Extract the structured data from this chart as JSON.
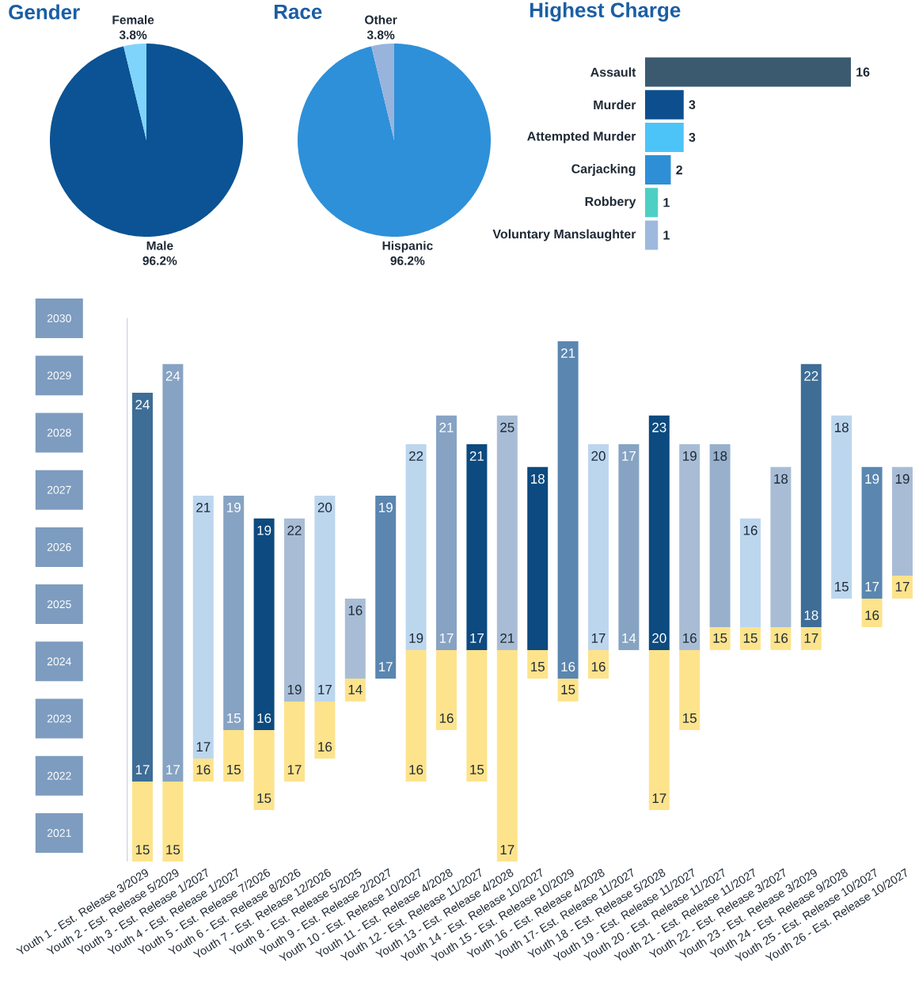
{
  "chart_data": [
    {
      "type": "pie",
      "title": "Gender",
      "categories": [
        "Male",
        "Female"
      ],
      "values": [
        96.2,
        3.8
      ],
      "colors": [
        "#0b5394",
        "#7fd4fb"
      ],
      "value_labels": [
        "96.2%",
        "3.8%"
      ]
    },
    {
      "type": "pie",
      "title": "Race",
      "categories": [
        "Hispanic",
        "Other"
      ],
      "values": [
        96.2,
        3.8
      ],
      "colors": [
        "#2e90d8",
        "#98b4dd"
      ],
      "value_labels": [
        "96.2%",
        "3.8%"
      ]
    },
    {
      "type": "bar",
      "orientation": "horizontal",
      "title": "Highest Charge",
      "categories": [
        "Assault",
        "Murder",
        "Attempted Murder",
        "Carjacking",
        "Robbery",
        "Voluntary Manslaughter"
      ],
      "values": [
        16,
        3,
        3,
        2,
        1,
        1
      ],
      "colors": [
        "#3b5a70",
        "#0d4f8e",
        "#4dc4f8",
        "#2f8fd6",
        "#4dcfc4",
        "#9fb9de"
      ],
      "data_labels": true
    },
    {
      "type": "bar",
      "categories": [
        "Youth 1 - Est. Release 3/2029",
        "Youth 2 - Est. Release 5/2029",
        "Youth 3 - Est. Release 1/2027",
        "Youth 4 - Est. Release 1/2027",
        "Youth 5 - Est. Release 7/2026",
        "Youth 6 - Est. Release 8/2026",
        "Youth 7 - Est. Release 12/2026",
        "Youth 8 - Est. Release 5/2025",
        "Youth 9 - Est. Release 2/2027",
        "Youth 10 - Est. Release 10/2027",
        "Youth 11 - Est. Release 4/2028",
        "Youth 12 - Est. Release 11/2027",
        "Youth 13 - Est. Release 4/2028",
        "Youth 14 - Est. Release 10/2027",
        "Youth 15 - Est. Release 10/2029",
        "Youth 16 - Est. Release 4/2028",
        "Youth 17- Est. Release 11/2027",
        "Youth 18 - Est. Release 5/2028",
        "Youth 19 - Est. Release 11/2027",
        "Youth 20 - Est. Release 11/2027",
        "Youth 21 - Est. Release 11/2027",
        "Youth 22 - Est. Release 3/2027",
        "Youth 23 - Est. Release 3/2029",
        "Youth 24 - Est. Release 9/2028",
        "Youth 25 - Est. Release 10/2027",
        "Youth 26 - Est. Release 10/2027"
      ],
      "base": [
        2021.9,
        2021.9,
        2022.3,
        2022.8,
        2022.8,
        2023.3,
        2023.3,
        2023.7,
        2023.7,
        2024.2,
        2024.2,
        2024.2,
        2024.2,
        2024.2,
        2023.7,
        2024.2,
        2024.2,
        2024.2,
        2024.2,
        2024.6,
        2024.6,
        2024.6,
        2024.6,
        2025.1,
        2025.1,
        2025.5
      ],
      "values": [
        6.8,
        7.3,
        4.6,
        4.1,
        3.7,
        3.2,
        3.6,
        1.4,
        3.2,
        3.6,
        4.1,
        3.6,
        4.1,
        3.2,
        5.9,
        3.6,
        3.6,
        4.1,
        3.6,
        3.2,
        1.9,
        2.8,
        4.6,
        3.2,
        2.3,
        1.9
      ],
      "colors": [
        "#3e6d96",
        "#87a3c3",
        "#bcd6ee",
        "#87a3c3",
        "#0c4a7f",
        "#a8bdd5",
        "#bcd6ee",
        "#a8bdd5",
        "#5a86b0",
        "#bcd6ee",
        "#87a3c3",
        "#0c4a7f",
        "#a8bdd5",
        "#0c4a7f",
        "#5a86b0",
        "#bcd6ee",
        "#87a3c3",
        "#0c4a7f",
        "#a8bdd5",
        "#98b0cc",
        "#bcd6ee",
        "#a8bdd5",
        "#3e6d96",
        "#bcd6ee",
        "#5a86b0",
        "#a8bdd5"
      ],
      "ylim": [
        2020.5,
        2030
      ],
      "yticks": [
        2021,
        2022,
        2023,
        2024,
        2025,
        2026,
        2027,
        2028,
        2029,
        2030
      ],
      "annotations": [
        {
          "text": "17",
          "x": "Youth 1 - Est. Release 3/2029",
          "y": 2021.9
        },
        {
          "text": "24",
          "x": "Youth 1 - Est. Release 3/2029",
          "y": 2028.7
        },
        {
          "text": "17",
          "x": "Youth 2 - Est. Release 5/2029",
          "y": 2021.9
        },
        {
          "text": "24",
          "x": "Youth 2 - Est. Release 5/2029",
          "y": 2029.2
        },
        {
          "text": "17",
          "x": "Youth 3 - Est. Release 1/2027",
          "y": 2022.3
        },
        {
          "text": "21",
          "x": "Youth 3 - Est. Release 1/2027",
          "y": 2026.9
        },
        {
          "text": "15",
          "x": "Youth 4 - Est. Release 1/2027",
          "y": 2022.8
        },
        {
          "text": "19",
          "x": "Youth 4 - Est. Release 1/2027",
          "y": 2026.9
        },
        {
          "text": "16",
          "x": "Youth 5 - Est. Release 7/2026",
          "y": 2022.8
        },
        {
          "text": "19",
          "x": "Youth 5 - Est. Release 7/2026",
          "y": 2026.5
        },
        {
          "text": "19",
          "x": "Youth 6 - Est. Release 8/2026",
          "y": 2023.3
        },
        {
          "text": "22",
          "x": "Youth 6 - Est. Release 8/2026",
          "y": 2026.5
        },
        {
          "text": "17",
          "x": "Youth 7 - Est. Release 12/2026",
          "y": 2023.3
        },
        {
          "text": "20",
          "x": "Youth 7 - Est. Release 12/2026",
          "y": 2026.9
        },
        {
          "text": "16",
          "x": "Youth 8 - Est. Release 5/2025",
          "y": 2025.1
        },
        {
          "text": "17",
          "x": "Youth 9 - Est. Release 2/2027",
          "y": 2023.7
        },
        {
          "text": "19",
          "x": "Youth 9 - Est. Release 2/2027",
          "y": 2026.9
        },
        {
          "text": "19",
          "x": "Youth 10 - Est. Release 10/2027",
          "y": 2024.2
        },
        {
          "text": "22",
          "x": "Youth 10 - Est. Release 10/2027",
          "y": 2027.8
        },
        {
          "text": "17",
          "x": "Youth 11 - Est. Release 4/2028",
          "y": 2024.2
        },
        {
          "text": "21",
          "x": "Youth 11 - Est. Release 4/2028",
          "y": 2028.3
        },
        {
          "text": "17",
          "x": "Youth 12 - Est. Release 11/2027",
          "y": 2024.2
        },
        {
          "text": "21",
          "x": "Youth 12 - Est. Release 11/2027",
          "y": 2027.8
        },
        {
          "text": "21",
          "x": "Youth 13 - Est. Release 4/2028",
          "y": 2024.2
        },
        {
          "text": "25",
          "x": "Youth 13 - Est. Release 4/2028",
          "y": 2028.3
        },
        {
          "text": "18",
          "x": "Youth 14 - Est. Release 10/2027",
          "y": 2027.4
        },
        {
          "text": "16",
          "x": "Youth 15 - Est. Release 10/2029",
          "y": 2023.7
        },
        {
          "text": "21",
          "x": "Youth 15 - Est. Release 10/2029",
          "y": 2029.6
        },
        {
          "text": "17",
          "x": "Youth 16 - Est. Release 4/2028",
          "y": 2024.2
        },
        {
          "text": "20",
          "x": "Youth 16 - Est. Release 4/2028",
          "y": 2027.8
        },
        {
          "text": "14",
          "x": "Youth 17- Est. Release 11/2027",
          "y": 2024.2
        },
        {
          "text": "17",
          "x": "Youth 17- Est. Release 11/2027",
          "y": 2027.8
        },
        {
          "text": "20",
          "x": "Youth 18 - Est. Release 5/2028",
          "y": 2024.2
        },
        {
          "text": "23",
          "x": "Youth 18 - Est. Release 5/2028",
          "y": 2028.3
        },
        {
          "text": "16",
          "x": "Youth 19 - Est. Release 11/2027",
          "y": 2024.2
        },
        {
          "text": "19",
          "x": "Youth 19 - Est. Release 11/2027",
          "y": 2027.8
        },
        {
          "text": "18",
          "x": "Youth 20 - Est. Release 11/2027",
          "y": 2027.8
        },
        {
          "text": "16",
          "x": "Youth 21 - Est. Release 11/2027",
          "y": 2026.5
        },
        {
          "text": "18",
          "x": "Youth 22 - Est. Release 3/2027",
          "y": 2027.4
        },
        {
          "text": "18",
          "x": "Youth 23 - Est. Release 3/2029",
          "y": 2024.6
        },
        {
          "text": "22",
          "x": "Youth 23 - Est. Release 3/2029",
          "y": 2029.2
        },
        {
          "text": "15",
          "x": "Youth 24 - Est. Release 9/2028",
          "y": 2025.1
        },
        {
          "text": "18",
          "x": "Youth 24 - Est. Release 9/2028",
          "y": 2028.3
        },
        {
          "text": "17",
          "x": "Youth 25 - Est. Release 10/2027",
          "y": 2025.1
        },
        {
          "text": "19",
          "x": "Youth 25 - Est. Release 10/2027",
          "y": 2027.4
        },
        {
          "text": "19",
          "x": "Youth 26 - Est. Release 10/2027",
          "y": 2027.4
        }
      ]
    },
    {
      "type": "bar",
      "tick_labels": false,
      "categories": [
        "Youth 1 - Est. Release 3/2029",
        "Youth 2 - Est. Release 5/2029",
        "Youth 3 - Est. Release 1/2027",
        "Youth 4 - Est. Release 1/2027",
        "Youth 5 - Est. Release 7/2026",
        "Youth 6 - Est. Release 8/2026",
        "Youth 7 - Est. Release 12/2026",
        "Youth 8 - Est. Release 5/2025",
        "Youth 9 - Est. Release 2/2027",
        "Youth 10 - Est. Release 10/2027",
        "Youth 11 - Est. Release 4/2028",
        "Youth 12 - Est. Release 11/2027",
        "Youth 13 - Est. Release 4/2028",
        "Youth 14 - Est. Release 10/2027",
        "Youth 15 - Est. Release 10/2029",
        "Youth 16 - Est. Release 4/2028",
        "Youth 17- Est. Release 11/2027",
        "Youth 18 - Est. Release 5/2028",
        "Youth 19 - Est. Release 11/2027",
        "Youth 20 - Est. Release 11/2027",
        "Youth 21 - Est. Release 11/2027",
        "Youth 22 - Est. Release 3/2027",
        "Youth 23 - Est. Release 3/2029",
        "Youth 24 - Est. Release 9/2028",
        "Youth 25 - Est. Release 10/2027",
        "Youth 26 - Est. Release 10/2027"
      ],
      "base": [
        2020.5,
        2020.5,
        2021.9,
        2021.9,
        2021.4,
        2021.9,
        2022.3,
        2023.3,
        null,
        2021.9,
        2022.8,
        2021.9,
        2020.5,
        2023.7,
        2023.3,
        2023.7,
        null,
        2021.4,
        2022.8,
        2024.2,
        2024.2,
        2024.2,
        2024.2,
        null,
        2024.6,
        2025.1
      ],
      "values": [
        1.4,
        1.4,
        0.4,
        0.9,
        1.4,
        1.4,
        1.0,
        0.4,
        null,
        2.3,
        1.4,
        2.3,
        3.7,
        0.5,
        0.4,
        0.5,
        null,
        2.8,
        1.4,
        0.4,
        0.4,
        0.4,
        0.4,
        null,
        0.5,
        0.4
      ],
      "color": "#fde38b",
      "ylim": [
        2020.5,
        2030
      ],
      "annotations": [
        {
          "text": "15",
          "x": "Youth 1 - Est. Release 3/2029",
          "y": 2020.5
        },
        {
          "text": "15",
          "x": "Youth 2 - Est. Release 5/2029",
          "y": 2020.5
        },
        {
          "text": "16",
          "x": "Youth 3 - Est. Release 1/2027",
          "y": 2021.9
        },
        {
          "text": "15",
          "x": "Youth 4 - Est. Release 1/2027",
          "y": 2021.9
        },
        {
          "text": "15",
          "x": "Youth 5 - Est. Release 7/2026",
          "y": 2021.4
        },
        {
          "text": "17",
          "x": "Youth 6 - Est. Release 8/2026",
          "y": 2021.9
        },
        {
          "text": "16",
          "x": "Youth 7 - Est. Release 12/2026",
          "y": 2022.3
        },
        {
          "text": "14",
          "x": "Youth 8 - Est. Release 5/2025",
          "y": 2023.3
        },
        {
          "text": "16",
          "x": "Youth 10 - Est. Release 10/2027",
          "y": 2021.9
        },
        {
          "text": "16",
          "x": "Youth 11 - Est. Release 4/2028",
          "y": 2022.8
        },
        {
          "text": "15",
          "x": "Youth 12 - Est. Release 11/2027",
          "y": 2021.9
        },
        {
          "text": "17",
          "x": "Youth 13 - Est. Release 4/2028",
          "y": 2020.5
        },
        {
          "text": "15",
          "x": "Youth 14 - Est. Release 10/2027",
          "y": 2023.7
        },
        {
          "text": "15",
          "x": "Youth 15 - Est. Release 10/2029",
          "y": 2023.3
        },
        {
          "text": "16",
          "x": "Youth 16 - Est. Release 4/2028",
          "y": 2023.7
        },
        {
          "text": "17",
          "x": "Youth 18 - Est. Release 5/2028",
          "y": 2021.4
        },
        {
          "text": "15",
          "x": "Youth 19 - Est. Release 11/2027",
          "y": 2022.8
        },
        {
          "text": "15",
          "x": "Youth 20 - Est. Release 11/2027",
          "y": 2024.2
        },
        {
          "text": "15",
          "x": "Youth 21 - Est. Release 11/2027",
          "y": 2024.2
        },
        {
          "text": "16",
          "x": "Youth 22 - Est. Release 3/2027",
          "y": 2024.2
        },
        {
          "text": "17",
          "x": "Youth 23 - Est. Release 3/2029",
          "y": 2024.2
        },
        {
          "text": "16",
          "x": "Youth 25 - Est. Release 10/2027",
          "y": 2024.6
        },
        {
          "text": "17",
          "x": "Youth 26 - Est. Release 10/2027",
          "y": 2025.1
        }
      ]
    }
  ]
}
